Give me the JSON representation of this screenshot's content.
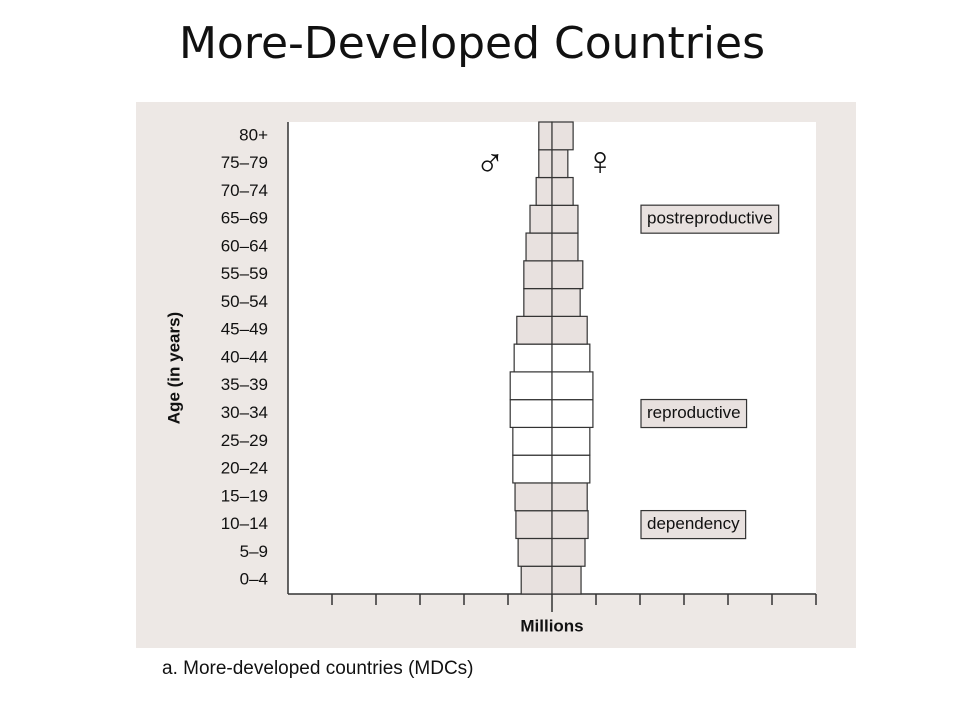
{
  "chart_data": {
    "type": "pyramid",
    "title": "More-Developed Countries",
    "caption": "a. More-developed countries (MDCs)",
    "x_label": "Millions",
    "y_label": "Age (in years)",
    "categories": [
      "0–4",
      "5–9",
      "10–14",
      "15–19",
      "20–24",
      "25–29",
      "30–34",
      "35–39",
      "40–44",
      "45–49",
      "50–54",
      "55–59",
      "60–64",
      "65–69",
      "70–74",
      "75–79",
      "80+"
    ],
    "fill_colors": [
      "#e8e1df",
      "#e8e1df",
      "#e8e1df",
      "#e8e1df",
      "#ffffff",
      "#ffffff",
      "#ffffff",
      "#ffffff",
      "#ffffff",
      "#e8e1df",
      "#e8e1df",
      "#e8e1df",
      "#e8e1df",
      "#e8e1df",
      "#e8e1df",
      "#e8e1df",
      "#e8e1df"
    ],
    "series": [
      {
        "name": "♂",
        "side": "left",
        "values": [
          0.7,
          0.77,
          0.82,
          0.84,
          0.89,
          0.89,
          0.95,
          0.95,
          0.86,
          0.8,
          0.64,
          0.64,
          0.59,
          0.5,
          0.36,
          0.3,
          0.3
        ]
      },
      {
        "name": "♀",
        "side": "right",
        "values": [
          0.66,
          0.75,
          0.82,
          0.8,
          0.86,
          0.86,
          0.93,
          0.93,
          0.86,
          0.8,
          0.64,
          0.7,
          0.59,
          0.59,
          0.48,
          0.36,
          0.48
        ]
      }
    ],
    "xlim": [
      -6,
      6
    ],
    "xticks": [
      -5,
      -4,
      -3,
      -2,
      -1,
      0,
      1,
      2,
      3,
      4,
      5,
      6
    ],
    "annotations": [
      {
        "text": "postreproductive",
        "category": "65–69"
      },
      {
        "text": "reproductive",
        "category": "30–34"
      },
      {
        "text": "dependency",
        "category": "10–14"
      }
    ]
  }
}
